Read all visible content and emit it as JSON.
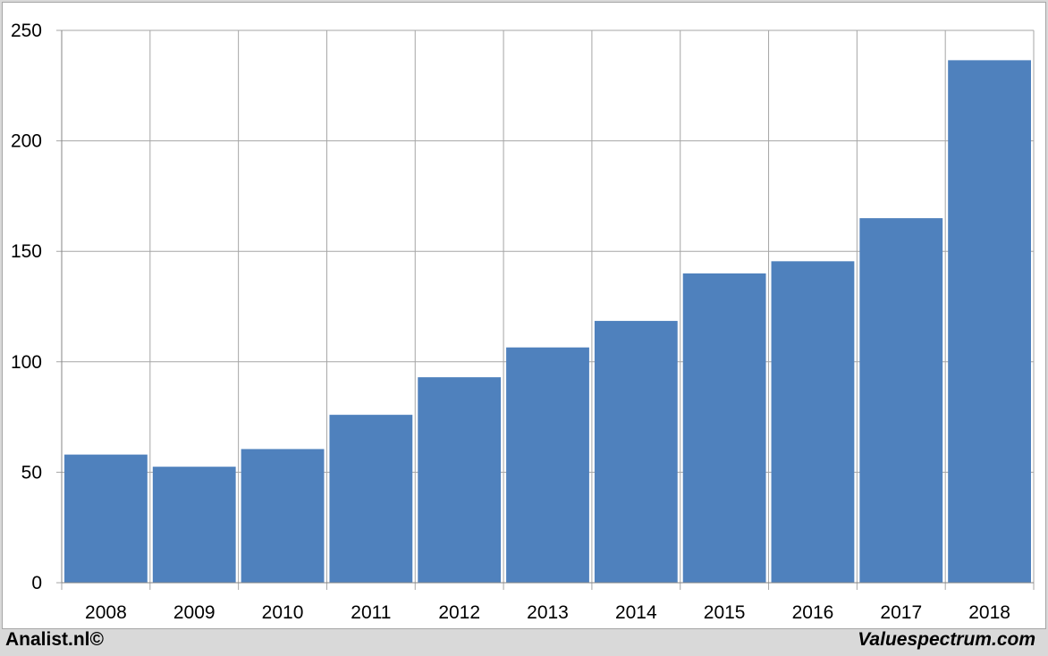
{
  "chart_data": {
    "type": "bar",
    "title": "",
    "xlabel": "",
    "ylabel": "",
    "categories": [
      "2008",
      "2009",
      "2010",
      "2011",
      "2012",
      "2013",
      "2014",
      "2015",
      "2016",
      "2017",
      "2018"
    ],
    "values": [
      58,
      52.5,
      60.5,
      76,
      93,
      106.5,
      118.5,
      140,
      145.5,
      165,
      236.5
    ],
    "ylim": [
      0,
      250
    ],
    "yticks": [
      "0",
      "50",
      "100",
      "150",
      "200",
      "250"
    ],
    "grid": true,
    "bar_color": "#4f81bd",
    "grid_color": "#a6a6a6"
  },
  "footer": {
    "left": "Analist.nl©",
    "right": "Valuespectrum.com"
  }
}
